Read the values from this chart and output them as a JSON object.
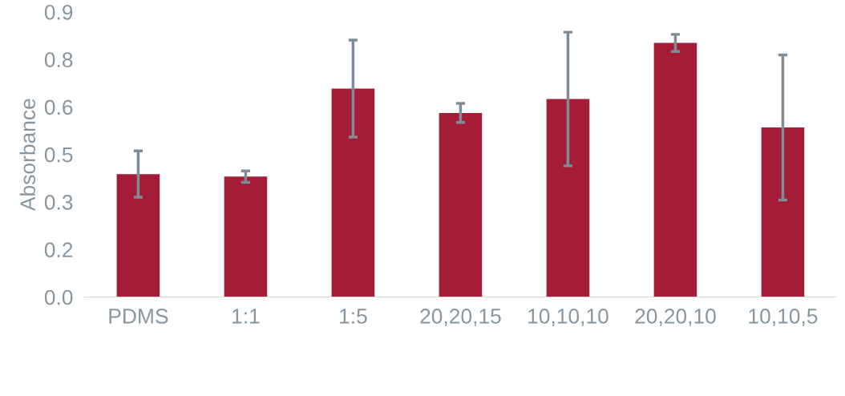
{
  "chart_data": {
    "type": "bar",
    "ylabel": "Absorbance",
    "categories": [
      "PDMS",
      "1:1",
      "1:5",
      "20,20,15",
      "10,10,10",
      "20,20,10",
      "10,10,5"
    ],
    "values": [
      0.388,
      0.38,
      0.658,
      0.581,
      0.625,
      0.802,
      0.535
    ],
    "errors": [
      0.073,
      0.018,
      0.153,
      0.03,
      0.211,
      0.027,
      0.229
    ],
    "color": "#a51c36",
    "ylim": [
      0,
      0.9
    ],
    "yticks": [
      {
        "value": 0,
        "label": "0.0"
      },
      {
        "value": 0.15,
        "label": "0.2"
      },
      {
        "value": 0.3,
        "label": "0.3"
      },
      {
        "value": 0.45,
        "label": "0.5"
      },
      {
        "value": 0.6,
        "label": "0.6"
      },
      {
        "value": 0.75,
        "label": "0.8"
      },
      {
        "value": 0.9,
        "label": "0.9"
      }
    ],
    "grid": false,
    "legend": false
  }
}
